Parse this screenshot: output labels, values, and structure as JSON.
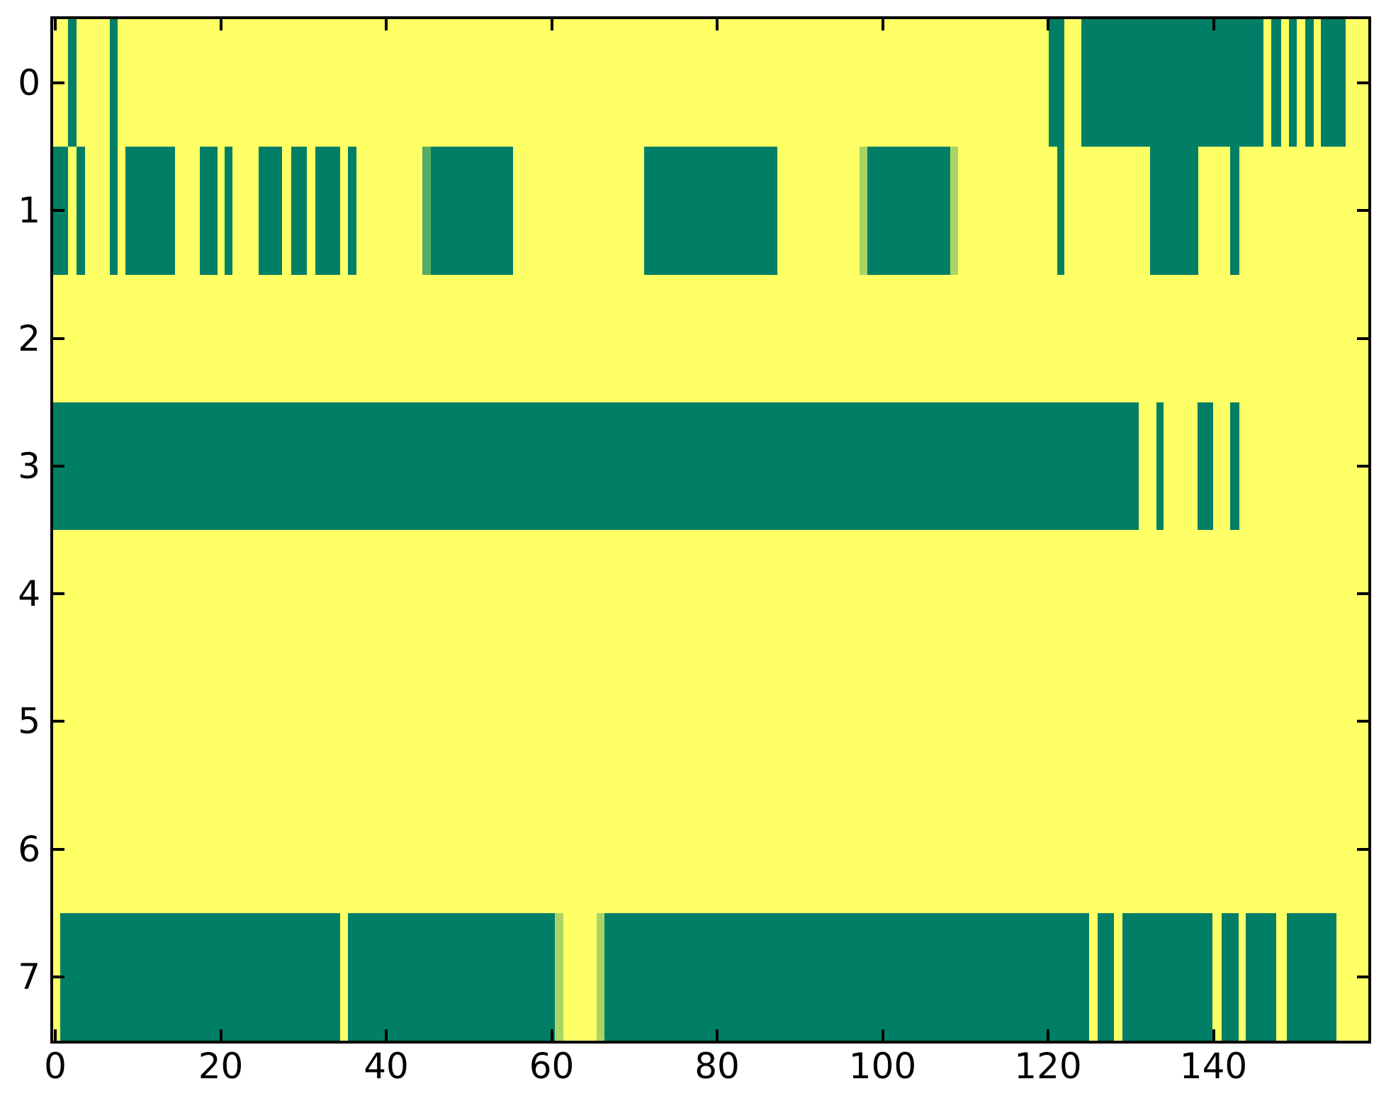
{
  "chart_data": {
    "type": "heatmap",
    "title": "",
    "xlabel": "",
    "ylabel": "",
    "x_tick_labels": [
      "0",
      "20",
      "40",
      "60",
      "80",
      "100",
      "120",
      "140"
    ],
    "x_tick_values": [
      0,
      20,
      40,
      60,
      80,
      100,
      120,
      140
    ],
    "y_tick_labels": [
      "0",
      "1",
      "2",
      "3",
      "4",
      "5",
      "6",
      "7"
    ],
    "y_tick_values": [
      0,
      1,
      2,
      3,
      4,
      5,
      6,
      7
    ],
    "x_range": [
      -0.3,
      158.7
    ],
    "n_rows": 8,
    "grid": false,
    "legend": "none",
    "colors": {
      "figure_bg": "#ffffff",
      "background": "#ffff66",
      "filled": "#007f66",
      "partial_dark": "#55aa66",
      "partial_light": "#aad466",
      "axis": "#000000"
    },
    "rows": [
      {
        "y": 0,
        "segments": [
          [
            1.5,
            2.6,
            "f"
          ],
          [
            6.6,
            7.5,
            "f"
          ],
          [
            120.1,
            122.0,
            "f"
          ],
          [
            124.0,
            146.0,
            "f"
          ],
          [
            147.0,
            148.2,
            "f"
          ],
          [
            149.1,
            150.1,
            "f"
          ],
          [
            151.1,
            152.1,
            "f"
          ],
          [
            153.0,
            156.0,
            "f"
          ]
        ]
      },
      {
        "y": 1,
        "segments": [
          [
            -0.3,
            1.54,
            "f"
          ],
          [
            2.6,
            3.6,
            "f"
          ],
          [
            6.6,
            7.5,
            "f"
          ],
          [
            8.5,
            14.45,
            "f"
          ],
          [
            17.5,
            19.6,
            "f"
          ],
          [
            20.5,
            21.4,
            "f"
          ],
          [
            24.6,
            27.4,
            "f"
          ],
          [
            28.5,
            30.4,
            "f"
          ],
          [
            31.4,
            34.4,
            "f"
          ],
          [
            35.4,
            36.4,
            "f"
          ],
          [
            44.4,
            45.4,
            "g1"
          ],
          [
            45.4,
            55.3,
            "f"
          ],
          [
            71.2,
            87.3,
            "f"
          ],
          [
            97.2,
            98.2,
            "g2"
          ],
          [
            98.2,
            108.2,
            "f"
          ],
          [
            108.2,
            109.1,
            "g2"
          ],
          [
            121.1,
            122.0,
            "f"
          ],
          [
            132.3,
            138.2,
            "f"
          ],
          [
            142.0,
            143.1,
            "f"
          ]
        ]
      },
      {
        "y": 2,
        "segments": []
      },
      {
        "y": 3,
        "segments": [
          [
            -0.3,
            131.0,
            "f"
          ],
          [
            133.1,
            134.0,
            "f"
          ],
          [
            138.1,
            140.0,
            "f"
          ],
          [
            142.0,
            143.1,
            "f"
          ]
        ]
      },
      {
        "y": 4,
        "segments": []
      },
      {
        "y": 5,
        "segments": []
      },
      {
        "y": 6,
        "segments": []
      },
      {
        "y": 7,
        "segments": [
          [
            0.6,
            34.4,
            "f"
          ],
          [
            35.4,
            60.4,
            "f"
          ],
          [
            60.4,
            61.4,
            "g2"
          ],
          [
            65.4,
            66.4,
            "g2"
          ],
          [
            66.4,
            125.0,
            "f"
          ],
          [
            126.0,
            128.0,
            "f"
          ],
          [
            129.0,
            139.9,
            "f"
          ],
          [
            141.0,
            143.0,
            "f"
          ],
          [
            143.9,
            147.6,
            "f"
          ],
          [
            148.9,
            154.9,
            "f"
          ]
        ]
      }
    ]
  }
}
